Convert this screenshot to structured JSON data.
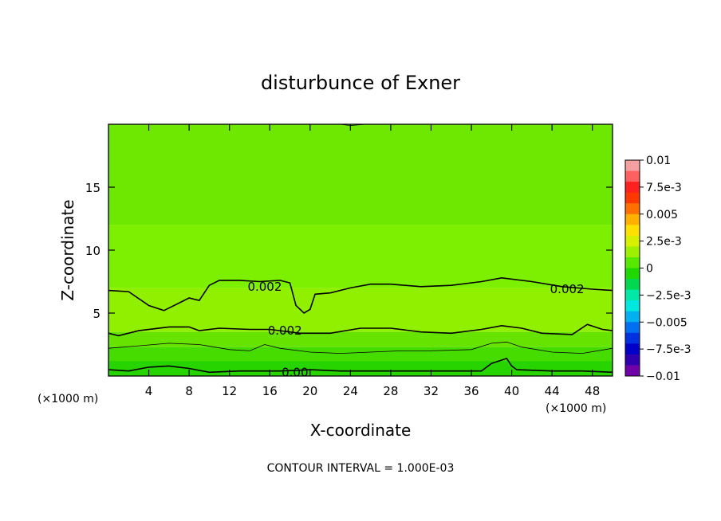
{
  "chart_data": {
    "type": "heatmap",
    "title": "disturbunce of Exner",
    "xlabel": "X-coordinate",
    "ylabel": "Z-coordinate",
    "x_unit_left": "(×1000 m)",
    "x_unit_right": "(×1000 m)",
    "footer": "CONTOUR INTERVAL = 1.000E-03",
    "xlim": [
      0,
      50
    ],
    "ylim": [
      0,
      20
    ],
    "x_ticks": [
      4,
      8,
      12,
      16,
      20,
      24,
      28,
      32,
      36,
      40,
      44,
      48
    ],
    "y_ticks": [
      5,
      10,
      15
    ],
    "colorbar": {
      "range": [
        -0.01,
        0.01
      ],
      "tick_labels": [
        "0.01",
        "7.5e-3",
        "0.005",
        "2.5e-3",
        "0",
        "-2.5e-3",
        "-0.005",
        "-7.5e-3",
        "-0.01"
      ],
      "colors": [
        "#f4a0a0",
        "#ff6060",
        "#ff2020",
        "#ff3800",
        "#ff7000",
        "#ffb000",
        "#ffe000",
        "#d8f000",
        "#9ef000",
        "#58e800",
        "#20d800",
        "#00d850",
        "#00e8a8",
        "#00e8e0",
        "#00b0f0",
        "#0070f0",
        "#0030e0",
        "#0000c8",
        "#3000b0",
        "#7000a8"
      ]
    },
    "field_bands": [
      {
        "z_range": [
          12,
          20
        ],
        "value": 0.0011,
        "color": "#6ee800"
      },
      {
        "z_range": [
          7,
          12
        ],
        "value": 0.0018,
        "color": "#7cf000"
      },
      {
        "z_range": [
          3.5,
          7
        ],
        "value": 0.0024,
        "color": "#90f000"
      },
      {
        "z_range": [
          2.3,
          3.5
        ],
        "value": 0.0014,
        "color": "#66e400"
      },
      {
        "z_range": [
          1.2,
          2.3
        ],
        "value": 0.0007,
        "color": "#46dc00"
      },
      {
        "z_range": [
          0,
          1.2
        ],
        "value": 0.0001,
        "color": "#28d400"
      }
    ],
    "contour_labels": [
      {
        "text": "0.002",
        "x": 15.5,
        "z": 7.1
      },
      {
        "text": "0.002",
        "x": 45.5,
        "z": 6.9
      },
      {
        "text": "0.002",
        "x": 17.5,
        "z": 3.6
      },
      {
        "text": "0.00",
        "x": 18.5,
        "z": 0.3
      }
    ],
    "contours": [
      {
        "value": 0.002,
        "points": [
          [
            0,
            6.8
          ],
          [
            2,
            6.7
          ],
          [
            4,
            5.6
          ],
          [
            5.5,
            5.2
          ],
          [
            7,
            5.8
          ],
          [
            8,
            6.2
          ],
          [
            9,
            6.0
          ],
          [
            10,
            7.2
          ],
          [
            11,
            7.6
          ],
          [
            13,
            7.6
          ],
          [
            15,
            7.5
          ],
          [
            17,
            7.6
          ],
          [
            18,
            7.4
          ],
          [
            18.6,
            5.6
          ],
          [
            19.4,
            5.0
          ],
          [
            20,
            5.3
          ],
          [
            20.5,
            6.5
          ],
          [
            22,
            6.6
          ],
          [
            24,
            7.0
          ],
          [
            26,
            7.3
          ],
          [
            28,
            7.3
          ],
          [
            31,
            7.1
          ],
          [
            34,
            7.2
          ],
          [
            37,
            7.5
          ],
          [
            39,
            7.8
          ],
          [
            42,
            7.5
          ],
          [
            45,
            7.1
          ],
          [
            48,
            6.9
          ],
          [
            50,
            6.8
          ]
        ]
      },
      {
        "value": 0.002,
        "points": [
          [
            0,
            3.4
          ],
          [
            1,
            3.2
          ],
          [
            3,
            3.6
          ],
          [
            6,
            3.9
          ],
          [
            8,
            3.9
          ],
          [
            9,
            3.6
          ],
          [
            11,
            3.8
          ],
          [
            14,
            3.7
          ],
          [
            16,
            3.7
          ],
          [
            19,
            3.4
          ],
          [
            22,
            3.4
          ],
          [
            25,
            3.8
          ],
          [
            28,
            3.8
          ],
          [
            31,
            3.5
          ],
          [
            34,
            3.4
          ],
          [
            37,
            3.7
          ],
          [
            39,
            4.0
          ],
          [
            41,
            3.8
          ],
          [
            43,
            3.4
          ],
          [
            46,
            3.3
          ],
          [
            47.5,
            4.1
          ],
          [
            49,
            3.7
          ],
          [
            50,
            3.6
          ]
        ]
      },
      {
        "value": 0.001,
        "points": [
          [
            0,
            2.2
          ],
          [
            3,
            2.4
          ],
          [
            6,
            2.6
          ],
          [
            9,
            2.5
          ],
          [
            12,
            2.1
          ],
          [
            14,
            2.0
          ],
          [
            15.5,
            2.5
          ],
          [
            17,
            2.2
          ],
          [
            20,
            1.9
          ],
          [
            23,
            1.8
          ],
          [
            26,
            1.9
          ],
          [
            29,
            2.0
          ],
          [
            32,
            2.0
          ],
          [
            36,
            2.1
          ],
          [
            38,
            2.6
          ],
          [
            39.5,
            2.7
          ],
          [
            41,
            2.3
          ],
          [
            44,
            1.9
          ],
          [
            47,
            1.8
          ],
          [
            50,
            2.2
          ]
        ]
      },
      {
        "value": 0.0,
        "points": [
          [
            0,
            0.5
          ],
          [
            2,
            0.4
          ],
          [
            4,
            0.7
          ],
          [
            6,
            0.8
          ],
          [
            8,
            0.6
          ],
          [
            10,
            0.3
          ],
          [
            13,
            0.4
          ],
          [
            15,
            0.4
          ],
          [
            17,
            0.4
          ],
          [
            20,
            0.5
          ],
          [
            23,
            0.4
          ],
          [
            26,
            0.4
          ],
          [
            30,
            0.4
          ],
          [
            34,
            0.4
          ],
          [
            37,
            0.4
          ],
          [
            38,
            1.0
          ],
          [
            39.5,
            1.4
          ],
          [
            40,
            0.8
          ],
          [
            40.5,
            0.5
          ],
          [
            44,
            0.4
          ],
          [
            47,
            0.4
          ],
          [
            50,
            0.3
          ]
        ]
      },
      {
        "value": 0.001,
        "points": [
          [
            23,
            20
          ],
          [
            24,
            19.9
          ],
          [
            25.5,
            20
          ]
        ]
      }
    ]
  }
}
